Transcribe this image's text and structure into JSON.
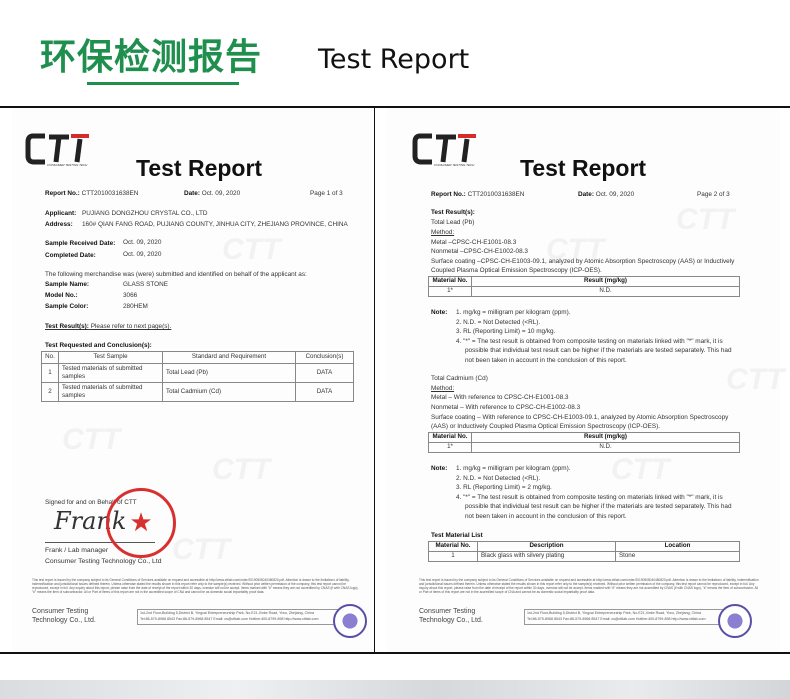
{
  "header": {
    "title_cn": "环保检测报告",
    "title_en": "Test Report",
    "accent_color": "#1f8f4e"
  },
  "logo_text": "CTT",
  "logo_tagline": "CONSUMER TESTING TECH",
  "page1": {
    "title": "Test Report",
    "report_no_label": "Report No.:",
    "report_no": "CTT2010031638EN",
    "date_label": "Date:",
    "date": "Oct. 09, 2020",
    "page": "Page 1 of 3",
    "applicant_label": "Applicant:",
    "applicant": "PUJIANG DONGZHOU CRYSTAL CO., LTD",
    "address_label": "Address:",
    "address": "160# QIAN FANG ROAD, PUJIANG COUNTY, JINHUA CITY, ZHEJIANG PROVINCE, CHINA",
    "received_label": "Sample Received Date:",
    "received": "Oct. 09, 2020",
    "completed_label": "Completed Date:",
    "completed": "Oct. 09, 2020",
    "intro": "The following merchandise was (were) submitted and identified on behalf of the applicant as:",
    "sample_name_label": "Sample Name:",
    "sample_name": "GLASS STONE",
    "model_label": "Model No.:",
    "model": "3066",
    "color_label": "Sample Color:",
    "color": "280HEM",
    "result_label": "Test Result(s):",
    "result_text": "Please refer to next page(s).",
    "conclusion_heading": "Test Requested and Conclusion(s):",
    "table": {
      "headers": [
        "No.",
        "Test Sample",
        "Standard and Requirement",
        "Conclusion(s)"
      ],
      "rows": [
        [
          "1",
          "Tested materials of submitted samples",
          "Total Lead (Pb)",
          "DATA"
        ],
        [
          "2",
          "Tested materials of submitted samples",
          "Total Cadmium (Cd)",
          "DATA"
        ]
      ]
    },
    "signed": "Signed for and on Behalf of CTT",
    "signature": "Frank",
    "stamp_text": "浙江中测检测技术有限公司 检验检测专用章",
    "signer": "Frank / Lab manager",
    "signer_company": "Consumer Testing Technology Co., Ltd"
  },
  "page2": {
    "title": "Test Report",
    "report_no_label": "Report No.:",
    "report_no": "CTT2010031638EN",
    "date_label": "Date:",
    "date": "Oct. 09, 2020",
    "page": "Page 2 of 3",
    "results_heading": "Test Result(s):",
    "lead": {
      "name": "Total Lead (Pb)",
      "method_label": "Method:",
      "metal": "Metal –CPSC-CH-E1001-08.3",
      "nonmetal": "Nonmetal –CPSC-CH-E1002-08.3",
      "surface": "Surface coating –CPSC-CH-E1003-09.1, analyzed by Atomic Absorption Spectroscopy (AAS) or Inductively",
      "surface2": "Coupled Plasma Optical Emission Spectroscopy (ICP-OES).",
      "headers": [
        "Material No.",
        "Result (mg/kg)"
      ],
      "row": [
        "1*",
        "N.D."
      ],
      "note_label": "Note:",
      "notes": [
        "1.   mg/kg = milligram per kilogram (ppm).",
        "2.   N.D. = Not Detected (<RL).",
        "3.   RL (Reporting Limit) = 10 mg/kg.",
        "4.   \"*\" = The test result is obtained from composite testing on materials linked with \"*\" mark, it is",
        "possible that individual test result can be higher if the materials are tested separately. This had",
        "not been taken in account in the conclusion of this report."
      ]
    },
    "cadmium": {
      "name": "Total Cadmium (Cd)",
      "method_label": "Method:",
      "metal": "Metal – With reference to CPSC-CH-E1001-08.3",
      "nonmetal": "Nonmetal – With reference to CPSC-CH-E1002-08.3",
      "surface": "Surface coating – With reference to CPSC-CH-E1003-09.1, analyzed by Atomic Absorption Spectroscopy",
      "surface2": "(AAS) or Inductively Coupled Plasma Optical Emission Spectroscopy (ICP-OES).",
      "headers": [
        "Material No.",
        "Result (mg/kg)"
      ],
      "row": [
        "1*",
        "N.D."
      ],
      "note_label": "Note:",
      "notes": [
        "1.   mg/kg = milligram per kilogram (ppm).",
        "2.   N.D. = Not Detected (<RL).",
        "3.   RL (Reporting Limit) = 2 mg/kg.",
        "4.   \"*\" = The test result is obtained from composite testing on materials linked with \"*\" mark, it is",
        "possible that individual test result can be higher if the materials are tested separately. This had",
        "not been taken in account in the conclusion of this report."
      ]
    },
    "material_list": {
      "heading": "Test Material List",
      "headers": [
        "Material No.",
        "Description",
        "Location"
      ],
      "row": [
        "1",
        "Black glass with silvery plating",
        "Stone"
      ]
    }
  },
  "footer": {
    "fine_print": "This test report is issued by the company subject to its General Conditions of Services available on request and accessible at http://www.cttlab.com/order/20190505040480820.pdf. Attention is drawn to the limitations of liability, indemnification and jurisdictional issues defined therein. Unless otherwise stated the results shown in this report refer only to the sample(s) received. Without prior written permission of the company, this test report cannot be reproduced, except in full. Any inquiry about this report, please raise from the date of receipt of the report within 30 days, overdue will not be accept. Items marked with \"#\" means they are not accredited by CNAS (if with CNAS logo), \"#\" means the item of subcontractor. All or Part of items of this report are not in the accredited scope of CNA and cannot be as domestic social impartiality proof data.",
    "company": "Consumer Testing Technology Co., Ltd.",
    "address": "1st-2nd Floor,Building 5,District B, Yingcai Entrepreneurship Park, No.E21,Xinke Road, Yiwu, Zhejiang, China",
    "contact": "Tel:86-579-8968 8543   Fax:86-579-8968 8547   Email: cs@cttlab.com   Hotline:400-8799-898   http://www.cttlab.com"
  }
}
